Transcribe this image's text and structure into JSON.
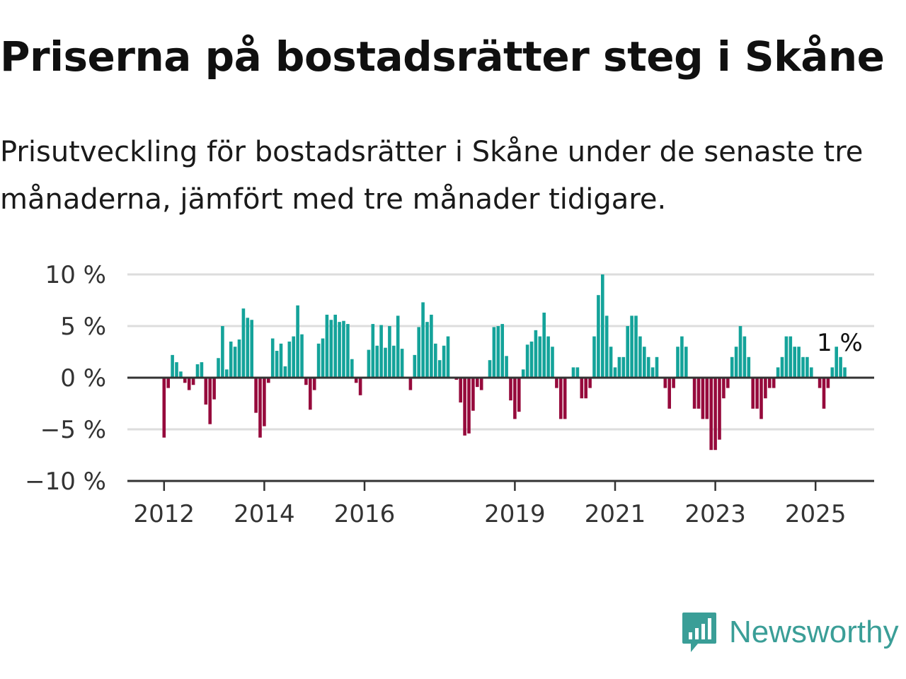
{
  "title": "Priserna på bostadsrätter steg i Skåne",
  "subtitle": "Prisutveckling för bostadsrätter i Skåne under de senaste tre månaderna, jämfört med tre månader tidigare.",
  "brand": {
    "name": "Newsworthy",
    "icon": "newsworthy-logo-icon"
  },
  "colors": {
    "positive": "#14a39a",
    "negative": "#960a3c",
    "grid": "#dddddd",
    "axis": "#333333"
  },
  "chart_data": {
    "type": "bar",
    "title": "",
    "xlabel": "",
    "ylabel": "",
    "ylim": [
      -10,
      10
    ],
    "yticks": [
      10,
      5,
      0,
      -5,
      -10
    ],
    "ytick_labels": [
      "10 %",
      "5 %",
      "0 %",
      "−5 %",
      "−10 %"
    ],
    "x_start": "2012-01",
    "xtick_labels": [
      {
        "label": "2012",
        "date": "2012-01"
      },
      {
        "label": "2014",
        "date": "2014-01"
      },
      {
        "label": "2016",
        "date": "2016-01"
      },
      {
        "label": "2019",
        "date": "2019-01"
      },
      {
        "label": "2021",
        "date": "2021-01"
      },
      {
        "label": "2023",
        "date": "2023-01"
      },
      {
        "label": "2025",
        "date": "2025-01"
      }
    ],
    "annotation": "1 %",
    "series": [
      {
        "values": [
          -5.8,
          -1.0,
          2.2,
          1.5,
          0.6,
          -0.5,
          -1.2,
          -0.7,
          1.3,
          1.5,
          -2.6,
          -4.5,
          -2.1,
          1.9,
          5.0,
          0.8,
          3.5,
          3.0,
          3.7,
          6.7,
          5.8,
          5.6,
          -3.4,
          -5.8,
          -4.7,
          -0.5,
          3.8,
          2.6,
          3.3,
          1.1,
          3.5,
          4.0,
          7.0,
          4.2,
          -0.7,
          -3.1,
          -1.2,
          3.3,
          3.8,
          6.1,
          5.6,
          6.1,
          5.4,
          5.5,
          5.2,
          1.8,
          -0.5,
          -1.7,
          0.0,
          2.7,
          5.2,
          3.1,
          5.1,
          2.9,
          5.0,
          3.1,
          6.0,
          2.8,
          0.0,
          -1.2,
          2.2,
          4.9,
          7.3,
          5.4,
          6.1,
          3.3,
          1.7,
          3.1,
          4.0,
          0.0,
          -0.2,
          -2.4,
          -5.6,
          -5.4,
          -3.2,
          -0.9,
          -1.2,
          0.0,
          1.7,
          4.9,
          5.0,
          5.2,
          2.1,
          -2.2,
          -4.0,
          -3.3,
          0.8,
          3.2,
          3.5,
          4.6,
          4.0,
          6.3,
          4.0,
          3.0,
          -1.0,
          -4.0,
          -4.0,
          0.0,
          1.0,
          1.0,
          -2.0,
          -2.0,
          -1.0,
          4.0,
          8.0,
          10.0,
          6.0,
          3.0,
          1.0,
          2.0,
          2.0,
          5.0,
          6.0,
          6.0,
          4.0,
          3.0,
          2.0,
          1.0,
          2.0,
          0.0,
          -1.0,
          -3.0,
          -1.0,
          3.0,
          4.0,
          3.0,
          0.0,
          -3.0,
          -3.0,
          -4.0,
          -4.0,
          -7.0,
          -7.0,
          -6.0,
          -2.0,
          -1.0,
          2.0,
          3.0,
          5.0,
          4.0,
          2.0,
          -3.0,
          -3.0,
          -4.0,
          -2.0,
          -1.0,
          -1.0,
          1.0,
          2.0,
          4.0,
          4.0,
          3.0,
          3.0,
          2.0,
          2.0,
          1.0,
          0.0,
          -1.0,
          -3.0,
          -1.0,
          1.0,
          3.0,
          2.0,
          1.0
        ]
      }
    ]
  }
}
